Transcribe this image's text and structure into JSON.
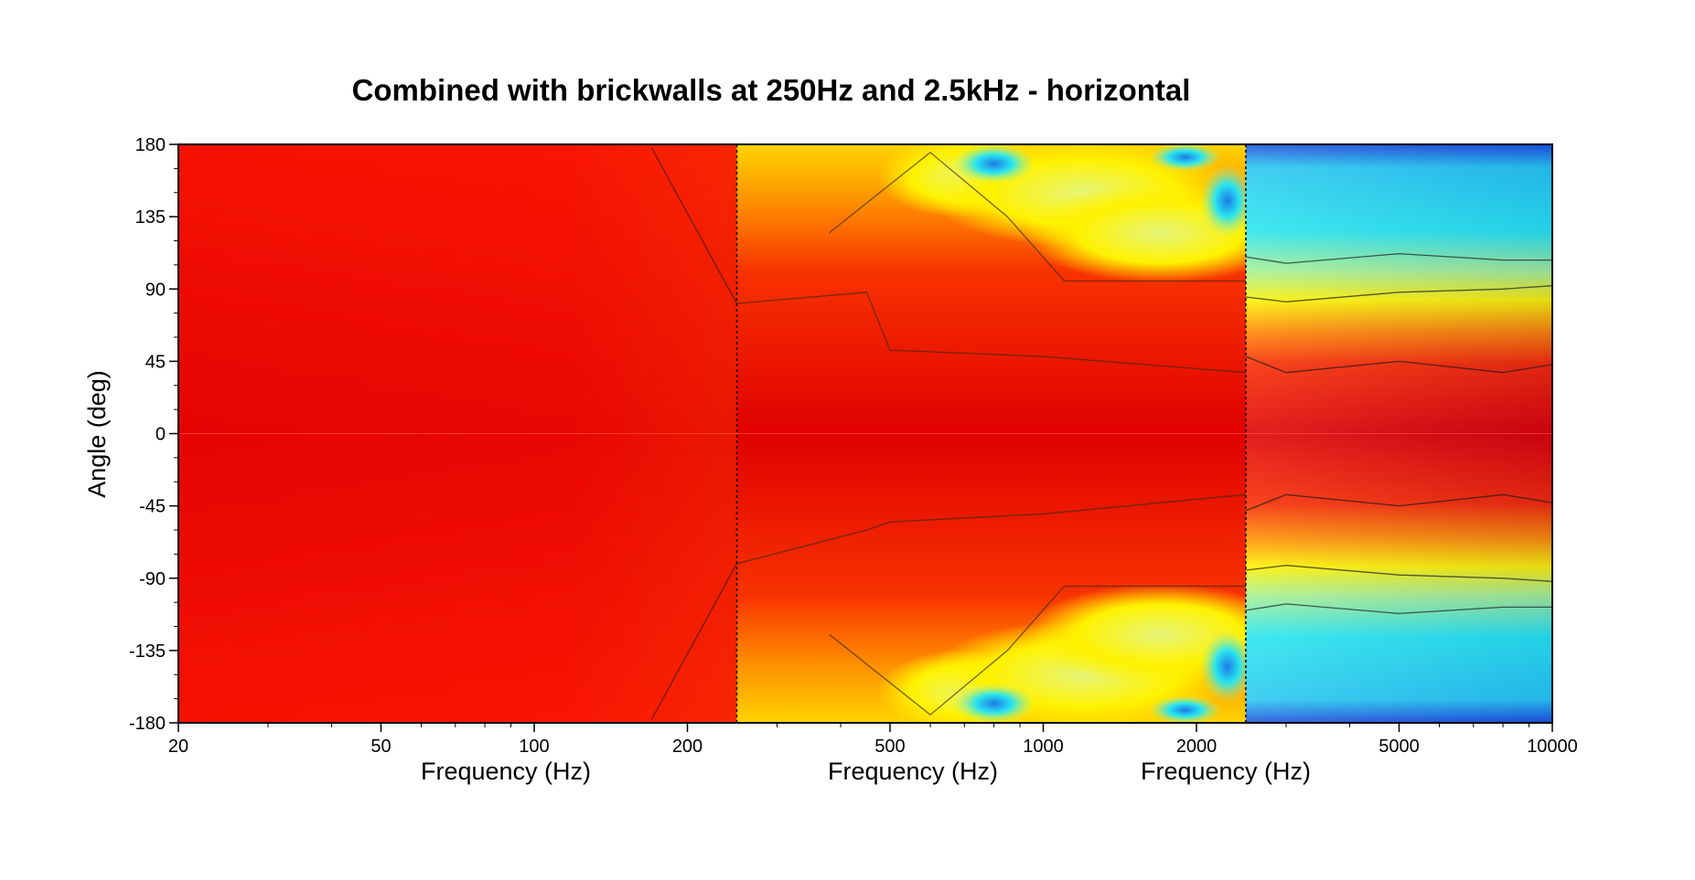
{
  "chart_data": {
    "type": "heatmap",
    "title": "Combined with brickwalls at 250Hz and 2.5kHz - horizontal",
    "ylabel": "Angle (deg)",
    "xlabels": [
      "Frequency (Hz)",
      "Frequency (Hz)",
      "Frequency (Hz)"
    ],
    "x_scale": "log",
    "xlim": [
      20,
      10000
    ],
    "ylim": [
      -180,
      180
    ],
    "x_ticks": [
      {
        "value": 20,
        "label": "20"
      },
      {
        "value": 50,
        "label": "50"
      },
      {
        "value": 100,
        "label": "100"
      },
      {
        "value": 200,
        "label": "200"
      },
      {
        "value": 500,
        "label": "500"
      },
      {
        "value": 1000,
        "label": "1000"
      },
      {
        "value": 2000,
        "label": "2000"
      },
      {
        "value": 5000,
        "label": "5000"
      },
      {
        "value": 10000,
        "label": "10000"
      }
    ],
    "y_ticks": [
      {
        "value": 180,
        "label": "180"
      },
      {
        "value": 135,
        "label": "135"
      },
      {
        "value": 90,
        "label": "90"
      },
      {
        "value": 45,
        "label": "45"
      },
      {
        "value": 0,
        "label": "0"
      },
      {
        "value": -45,
        "label": "-45"
      },
      {
        "value": -90,
        "label": "-90"
      },
      {
        "value": -135,
        "label": "-135"
      },
      {
        "value": -180,
        "label": "-180"
      }
    ],
    "brickwall_frequencies_hz": [
      250,
      2500
    ],
    "colormap": [
      "#0a1a8c",
      "#1e5ae6",
      "#18c8f0",
      "#28f0e6",
      "#b4f08c",
      "#fff200",
      "#ffb400",
      "#ff6400",
      "#e60a0a"
    ],
    "contour_angles": {
      "segment_20_250": [
        {
          "x": [
            170,
            250
          ],
          "upper": [
            178,
            81
          ],
          "lower": [
            -178,
            -81
          ]
        }
      ],
      "segment_250_2500": [
        {
          "x": [
            250,
            450,
            500,
            1000,
            2500
          ],
          "upper": [
            81,
            88,
            52,
            48,
            38
          ],
          "lower": [
            -81,
            -60,
            -55,
            -50,
            -38
          ]
        },
        {
          "x": [
            380,
            600,
            850,
            1100,
            2500
          ],
          "upper": [
            125,
            175,
            135,
            95,
            95
          ],
          "lower": [
            -125,
            -175,
            -135,
            -95,
            -95
          ]
        }
      ],
      "segment_2500_10000": [
        {
          "x": [
            2500,
            3000,
            5000,
            8000,
            10000
          ],
          "upper": [
            48,
            38,
            45,
            38,
            43
          ],
          "lower": [
            -48,
            -38,
            -45,
            -38,
            -43
          ]
        },
        {
          "x": [
            2500,
            3000,
            5000,
            8000,
            10000
          ],
          "upper": [
            85,
            82,
            88,
            90,
            92
          ],
          "lower": [
            -85,
            -82,
            -88,
            -90,
            -92
          ]
        },
        {
          "x": [
            2500,
            3000,
            5000,
            8000,
            10000
          ],
          "upper": [
            110,
            106,
            112,
            108,
            108
          ],
          "lower": [
            -110,
            -106,
            -112,
            -108,
            -108
          ]
        }
      ]
    }
  }
}
